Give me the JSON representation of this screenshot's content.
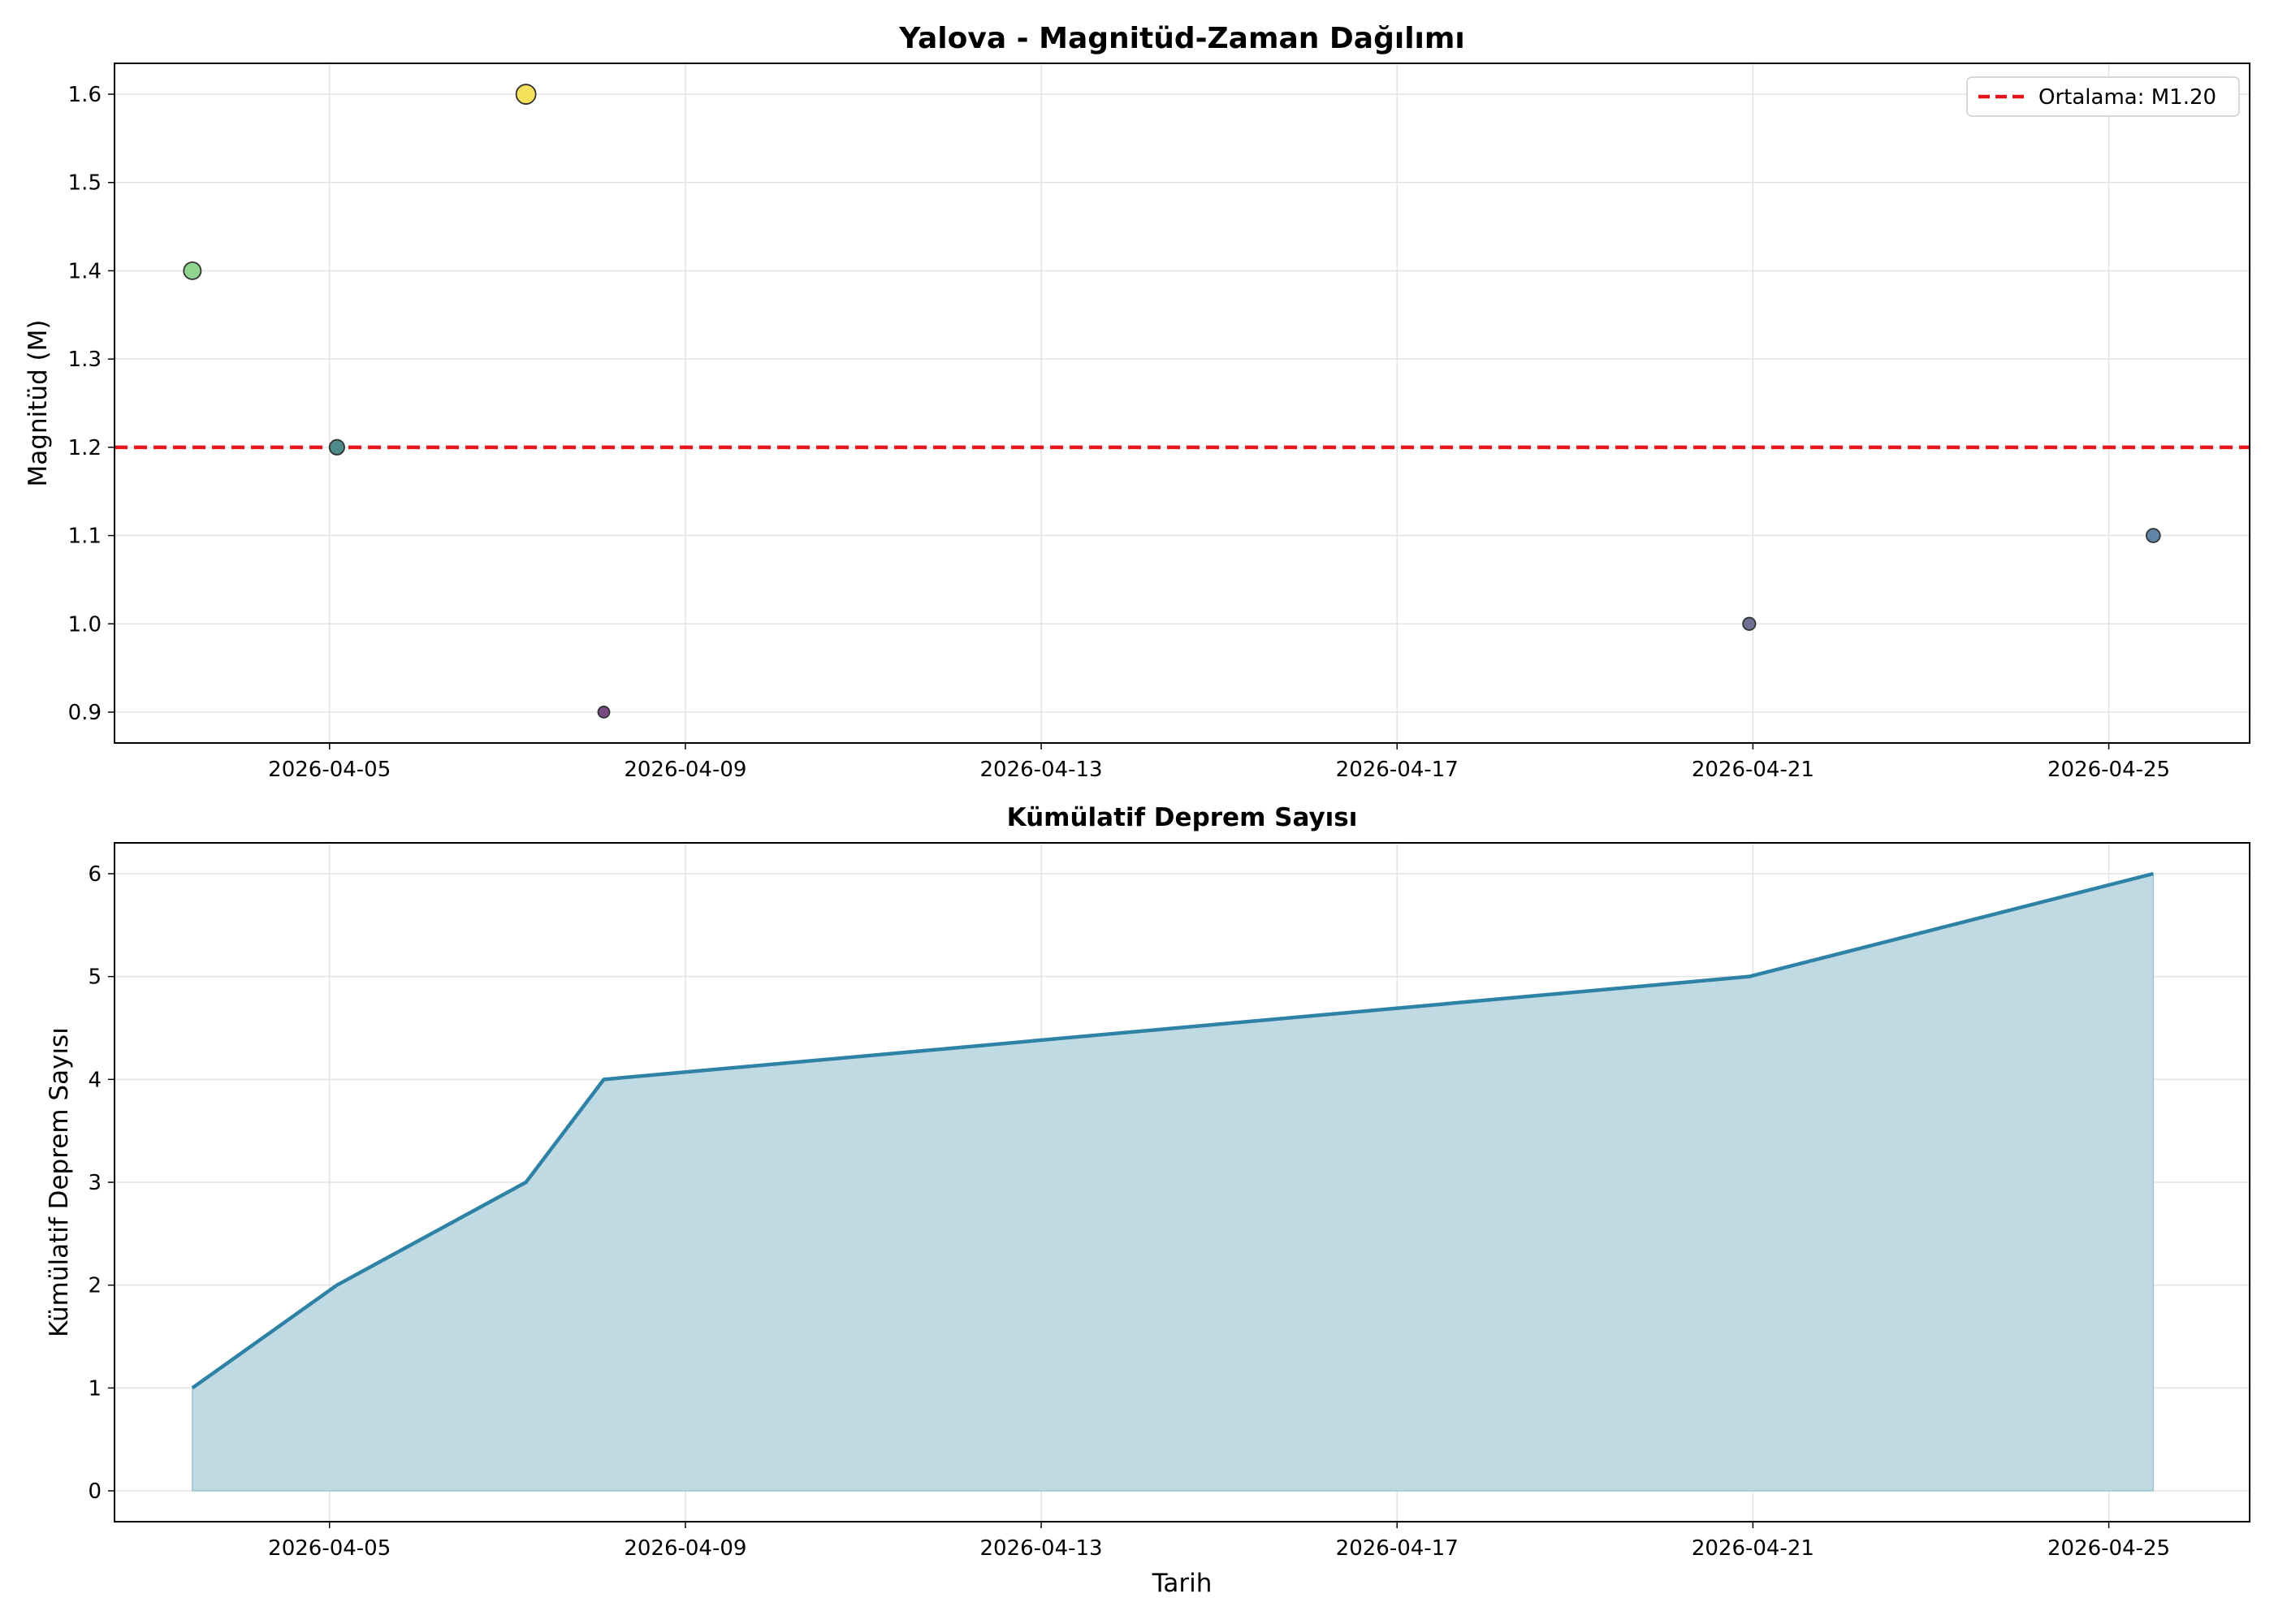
{
  "chart_data": [
    {
      "type": "scatter",
      "title": "Yalova - Magnitüd-Zaman Dağılımı",
      "xlabel": "",
      "ylabel": "Magnitüd (M)",
      "x_ticks": [
        "2026-04-05",
        "2026-04-09",
        "2026-04-13",
        "2026-04-17",
        "2026-04-21",
        "2026-04-25"
      ],
      "y_ticks": [
        "0.9",
        "1.0",
        "1.1",
        "1.2",
        "1.3",
        "1.4",
        "1.5",
        "1.6"
      ],
      "xlim": [
        "2026-04-02T14:00",
        "2026-04-26T14:00"
      ],
      "ylim": [
        0.865,
        1.635
      ],
      "grid": true,
      "legend_position": "top-right",
      "points": [
        {
          "x": "2026-04-03T11:00",
          "y": 1.4,
          "color": "#8fd48f"
        },
        {
          "x": "2026-04-05T02:00",
          "y": 1.2,
          "color": "#4d8a8a"
        },
        {
          "x": "2026-04-07T05:00",
          "y": 1.6,
          "color": "#f5e15c"
        },
        {
          "x": "2026-04-08T02:00",
          "y": 0.9,
          "color": "#7a4a85"
        },
        {
          "x": "2026-04-20T23:00",
          "y": 1.0,
          "color": "#6d7090"
        },
        {
          "x": "2026-04-25T12:00",
          "y": 1.1,
          "color": "#5f86a8"
        }
      ],
      "reference_line": {
        "y": 1.2,
        "label": "Ortalama: M1.20",
        "color": "#e8161b",
        "style": "dashed"
      }
    },
    {
      "type": "area",
      "title": "Kümülatif Deprem Sayısı",
      "xlabel": "Tarih",
      "ylabel": "Kümülatif Deprem Sayısı",
      "x_ticks": [
        "2026-04-05",
        "2026-04-09",
        "2026-04-13",
        "2026-04-17",
        "2026-04-21",
        "2026-04-25"
      ],
      "y_ticks": [
        "0",
        "1",
        "2",
        "3",
        "4",
        "5",
        "6"
      ],
      "xlim": [
        "2026-04-02T14:00",
        "2026-04-26T14:00"
      ],
      "ylim": [
        -0.3,
        6.3
      ],
      "grid": true,
      "x": [
        "2026-04-03T11:00",
        "2026-04-05T02:00",
        "2026-04-07T05:00",
        "2026-04-08T02:00",
        "2026-04-20T23:00",
        "2026-04-25T12:00"
      ],
      "values": [
        1,
        2,
        3,
        4,
        5,
        6
      ],
      "line_color": "#2e82a6",
      "fill_color": "#c0dae4"
    }
  ]
}
